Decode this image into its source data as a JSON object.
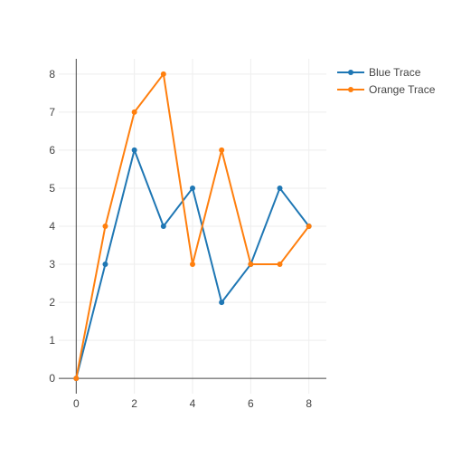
{
  "chart_data": {
    "type": "line",
    "x_ticks": [
      0,
      2,
      4,
      6,
      8
    ],
    "y_ticks": [
      0,
      1,
      2,
      3,
      4,
      5,
      6,
      7,
      8
    ],
    "xlim": [
      -0.6,
      8.6
    ],
    "ylim": [
      -0.4,
      8.4
    ],
    "grid": true,
    "legend_position": "top-right",
    "series": [
      {
        "name": "Blue Trace",
        "color": "#1f77b4",
        "x": [
          0,
          1,
          2,
          3,
          4,
          5,
          6,
          7,
          8
        ],
        "y": [
          0,
          3,
          6,
          4,
          5,
          2,
          3,
          5,
          4
        ]
      },
      {
        "name": "Orange Trace",
        "color": "#ff7f0e",
        "x": [
          0,
          1,
          2,
          3,
          4,
          5,
          6,
          7,
          8
        ],
        "y": [
          0,
          4,
          7,
          8,
          3,
          6,
          3,
          3,
          4
        ]
      }
    ]
  }
}
